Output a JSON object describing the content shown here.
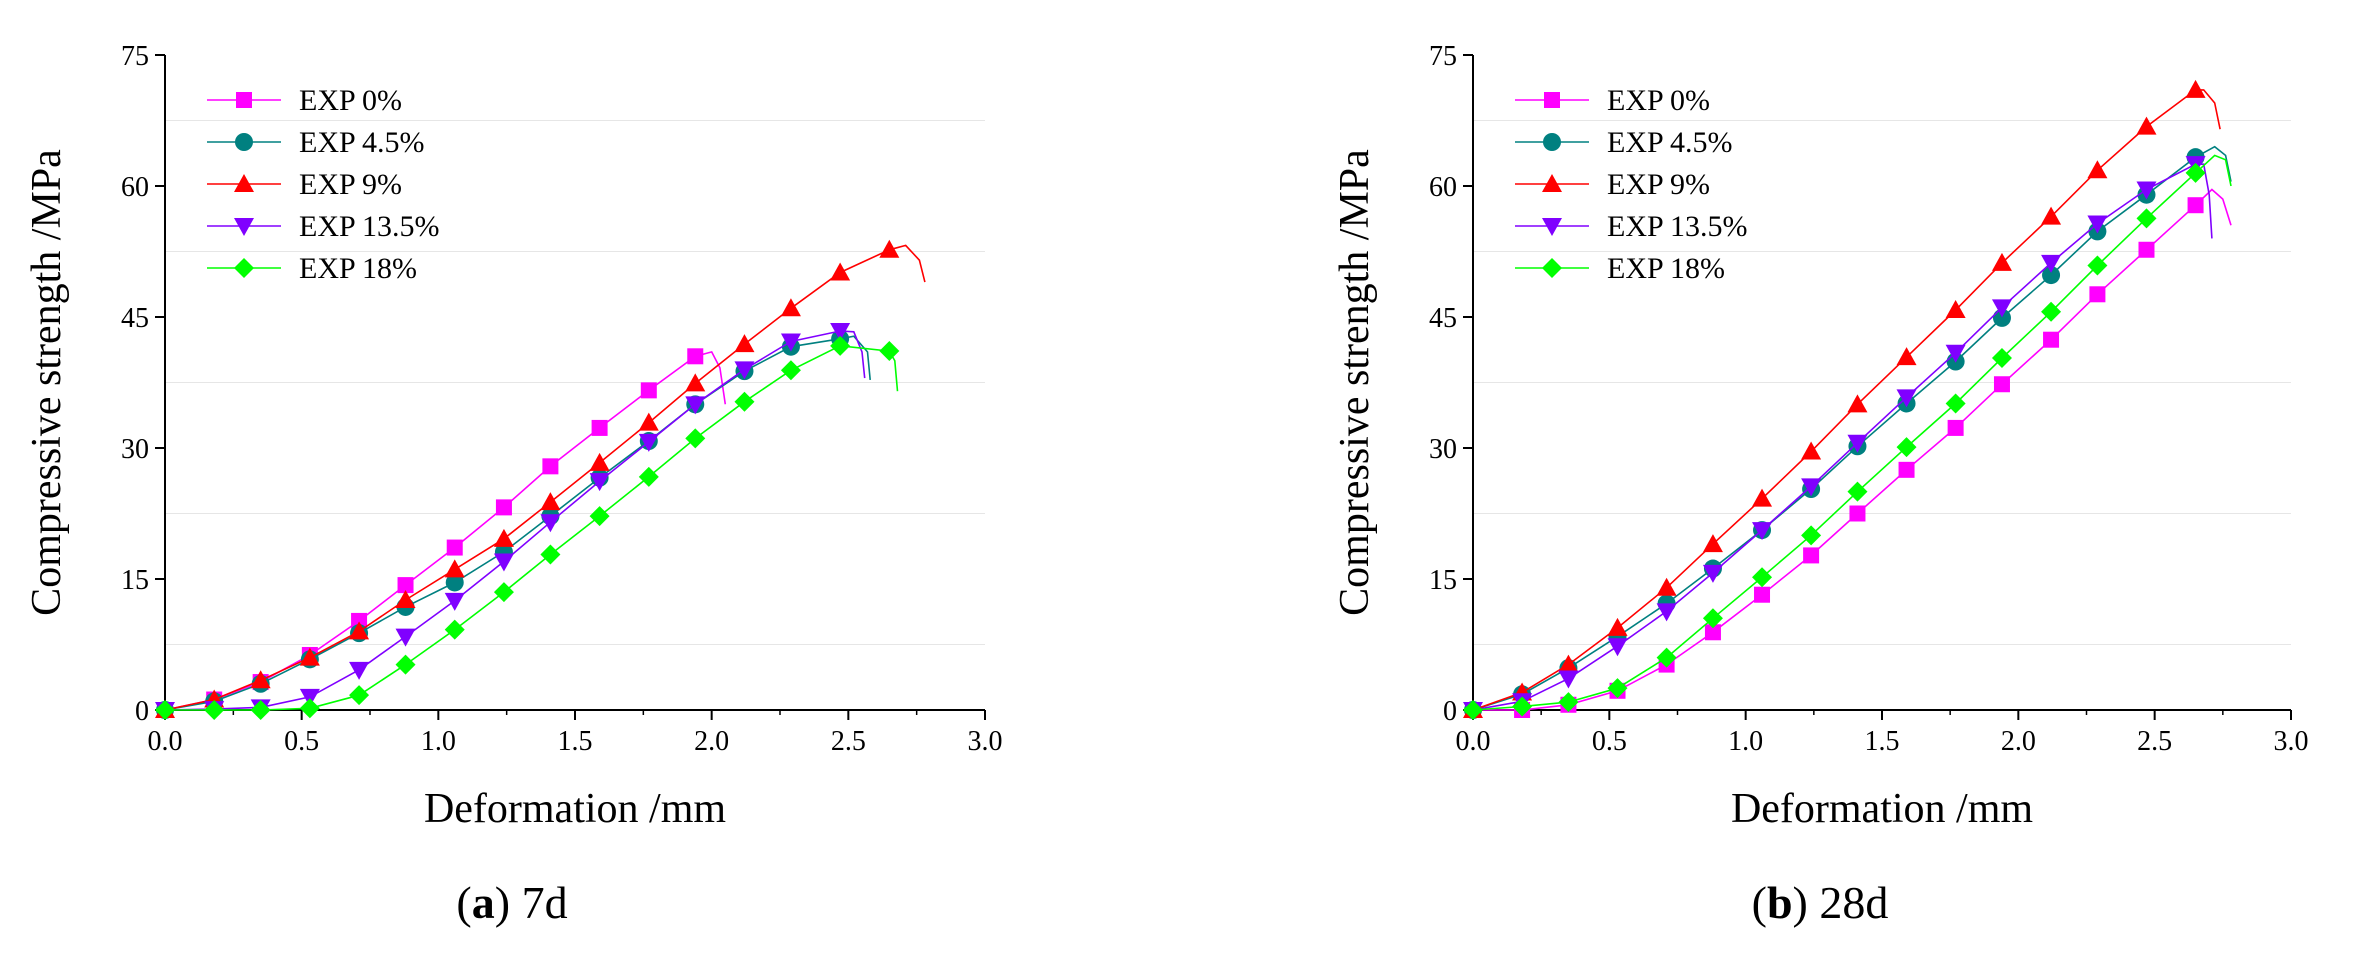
{
  "colors": {
    "EXP 0%": "#ff00ff",
    "EXP 4.5%": "#008080",
    "EXP 9%": "#ff0000",
    "EXP 13.5%": "#8000ff",
    "EXP 18%": "#00ff00"
  },
  "markers": {
    "EXP 0%": "square",
    "EXP 4.5%": "circle",
    "EXP 9%": "triangle-up",
    "EXP 13.5%": "triangle-down",
    "EXP 18%": "diamond"
  },
  "chart_data": [
    {
      "type": "line",
      "panel_label": "a",
      "caption": "7d",
      "xlabel": "Deformation /mm",
      "ylabel": "Compressive strength /MPa",
      "xlim": [
        0,
        3
      ],
      "ylim": [
        0,
        75
      ],
      "xticks": [
        0.0,
        0.5,
        1.0,
        1.5,
        2.0,
        2.5,
        3.0
      ],
      "xtick_labels": [
        "0.0",
        "0.5",
        "1.0",
        "1.5",
        "2.0",
        "2.5",
        "3.0"
      ],
      "yticks": [
        0,
        15,
        30,
        45,
        60,
        75
      ],
      "ytick_labels": [
        "0",
        "15",
        "30",
        "45",
        "60",
        "75"
      ],
      "legend": [
        "EXP 0%",
        "EXP 4.5%",
        "EXP 9%",
        "EXP 13.5%",
        "EXP 18%"
      ],
      "series": [
        {
          "name": "EXP 0%",
          "points": [
            [
              0,
              0
            ],
            [
              0.18,
              1.2
            ],
            [
              0.35,
              3.2
            ],
            [
              0.53,
              6.3
            ],
            [
              0.71,
              10.2
            ],
            [
              0.88,
              14.3
            ],
            [
              1.06,
              18.6
            ],
            [
              1.24,
              23.2
            ],
            [
              1.41,
              27.9
            ],
            [
              1.59,
              32.3
            ],
            [
              1.77,
              36.6
            ],
            [
              1.94,
              40.5
            ]
          ],
          "tail": [
            [
              2.0,
              41.0
            ],
            [
              2.03,
              39.2
            ],
            [
              2.05,
              35.0
            ]
          ]
        },
        {
          "name": "EXP 4.5%",
          "points": [
            [
              0,
              0
            ],
            [
              0.18,
              1.0
            ],
            [
              0.35,
              3.0
            ],
            [
              0.53,
              5.8
            ],
            [
              0.71,
              8.8
            ],
            [
              0.88,
              11.8
            ],
            [
              1.06,
              14.6
            ],
            [
              1.24,
              18.1
            ],
            [
              1.41,
              22.2
            ],
            [
              1.59,
              26.6
            ],
            [
              1.77,
              30.8
            ],
            [
              1.94,
              35.0
            ],
            [
              2.12,
              38.8
            ],
            [
              2.29,
              41.6
            ],
            [
              2.47,
              42.5
            ]
          ],
          "tail": [
            [
              2.52,
              42.8
            ],
            [
              2.57,
              41.0
            ],
            [
              2.58,
              37.8
            ]
          ]
        },
        {
          "name": "EXP 9%",
          "points": [
            [
              0,
              0
            ],
            [
              0.18,
              1.2
            ],
            [
              0.35,
              3.4
            ],
            [
              0.53,
              6.0
            ],
            [
              0.71,
              9.0
            ],
            [
              0.88,
              12.6
            ],
            [
              1.06,
              16.1
            ],
            [
              1.24,
              19.6
            ],
            [
              1.41,
              23.8
            ],
            [
              1.59,
              28.3
            ],
            [
              1.77,
              32.9
            ],
            [
              1.94,
              37.4
            ],
            [
              2.12,
              41.9
            ],
            [
              2.29,
              46.0
            ],
            [
              2.47,
              50.1
            ],
            [
              2.65,
              52.7
            ]
          ],
          "tail": [
            [
              2.71,
              53.2
            ],
            [
              2.76,
              51.5
            ],
            [
              2.78,
              49.0
            ]
          ]
        },
        {
          "name": "EXP 13.5%",
          "points": [
            [
              0,
              0
            ],
            [
              0.18,
              0.1
            ],
            [
              0.35,
              0.3
            ],
            [
              0.53,
              1.5
            ],
            [
              0.71,
              4.6
            ],
            [
              0.88,
              8.4
            ],
            [
              1.06,
              12.5
            ],
            [
              1.24,
              17.0
            ],
            [
              1.41,
              21.5
            ],
            [
              1.59,
              26.2
            ],
            [
              1.77,
              30.7
            ],
            [
              1.94,
              35.0
            ],
            [
              2.12,
              39.0
            ],
            [
              2.29,
              42.2
            ],
            [
              2.47,
              43.4
            ]
          ],
          "tail": [
            [
              2.52,
              43.3
            ],
            [
              2.55,
              41.0
            ],
            [
              2.56,
              38.0
            ]
          ]
        },
        {
          "name": "EXP 18%",
          "points": [
            [
              0,
              0
            ],
            [
              0.18,
              0
            ],
            [
              0.35,
              0
            ],
            [
              0.53,
              0.2
            ],
            [
              0.71,
              1.7
            ],
            [
              0.88,
              5.2
            ],
            [
              1.06,
              9.2
            ],
            [
              1.24,
              13.5
            ],
            [
              1.41,
              17.8
            ],
            [
              1.59,
              22.2
            ],
            [
              1.77,
              26.7
            ],
            [
              1.94,
              31.1
            ],
            [
              2.12,
              35.3
            ],
            [
              2.29,
              38.9
            ],
            [
              2.47,
              41.7
            ],
            [
              2.65,
              41.1
            ]
          ],
          "tail": [
            [
              2.67,
              40.0
            ],
            [
              2.68,
              36.5
            ]
          ]
        }
      ]
    },
    {
      "type": "line",
      "panel_label": "b",
      "caption": "28d",
      "xlabel": "Deformation /mm",
      "ylabel": "Compressive strength /MPa",
      "xlim": [
        0,
        3
      ],
      "ylim": [
        0,
        75
      ],
      "xticks": [
        0.0,
        0.5,
        1.0,
        1.5,
        2.0,
        2.5,
        3.0
      ],
      "xtick_labels": [
        "0.0",
        "0.5",
        "1.0",
        "1.5",
        "2.0",
        "2.5",
        "3.0"
      ],
      "yticks": [
        0,
        15,
        30,
        45,
        60,
        75
      ],
      "ytick_labels": [
        "0",
        "15",
        "30",
        "45",
        "60",
        "75"
      ],
      "legend": [
        "EXP 0%",
        "EXP 4.5%",
        "EXP 9%",
        "EXP 13.5%",
        "EXP 18%"
      ],
      "series": [
        {
          "name": "EXP 0%",
          "points": [
            [
              0,
              0
            ],
            [
              0.18,
              0
            ],
            [
              0.35,
              0.6
            ],
            [
              0.53,
              2.2
            ],
            [
              0.71,
              5.2
            ],
            [
              0.88,
              8.9
            ],
            [
              1.06,
              13.2
            ],
            [
              1.24,
              17.7
            ],
            [
              1.41,
              22.5
            ],
            [
              1.59,
              27.5
            ],
            [
              1.77,
              32.3
            ],
            [
              1.94,
              37.3
            ],
            [
              2.12,
              42.4
            ],
            [
              2.29,
              47.6
            ],
            [
              2.47,
              52.7
            ],
            [
              2.65,
              57.8
            ]
          ],
          "tail": [
            [
              2.71,
              59.6
            ],
            [
              2.75,
              58.5
            ],
            [
              2.78,
              55.5
            ]
          ]
        },
        {
          "name": "EXP 4.5%",
          "points": [
            [
              0,
              0
            ],
            [
              0.18,
              1.8
            ],
            [
              0.35,
              4.8
            ],
            [
              0.53,
              8.4
            ],
            [
              0.71,
              12.2
            ],
            [
              0.88,
              16.2
            ],
            [
              1.06,
              20.6
            ],
            [
              1.24,
              25.3
            ],
            [
              1.41,
              30.2
            ],
            [
              1.59,
              35.1
            ],
            [
              1.77,
              39.9
            ],
            [
              1.94,
              44.9
            ],
            [
              2.12,
              49.8
            ],
            [
              2.29,
              54.8
            ],
            [
              2.47,
              59.0
            ],
            [
              2.65,
              63.3
            ]
          ],
          "tail": [
            [
              2.72,
              64.5
            ],
            [
              2.76,
              63.5
            ],
            [
              2.78,
              60.5
            ]
          ]
        },
        {
          "name": "EXP 9%",
          "points": [
            [
              0,
              0
            ],
            [
              0.18,
              2.0
            ],
            [
              0.35,
              5.2
            ],
            [
              0.53,
              9.4
            ],
            [
              0.71,
              14.0
            ],
            [
              0.88,
              19.0
            ],
            [
              1.06,
              24.2
            ],
            [
              1.24,
              29.6
            ],
            [
              1.41,
              35.0
            ],
            [
              1.59,
              40.4
            ],
            [
              1.77,
              45.8
            ],
            [
              1.94,
              51.2
            ],
            [
              2.12,
              56.5
            ],
            [
              2.29,
              61.8
            ],
            [
              2.47,
              66.8
            ],
            [
              2.65,
              71.0
            ]
          ],
          "tail": [
            [
              2.68,
              71.0
            ],
            [
              2.72,
              69.5
            ],
            [
              2.74,
              66.5
            ]
          ]
        },
        {
          "name": "EXP 13.5%",
          "points": [
            [
              0,
              0
            ],
            [
              0.18,
              1.0
            ],
            [
              0.35,
              3.6
            ],
            [
              0.53,
              7.3
            ],
            [
              0.71,
              11.3
            ],
            [
              0.88,
              15.7
            ],
            [
              1.06,
              20.6
            ],
            [
              1.24,
              25.6
            ],
            [
              1.41,
              30.6
            ],
            [
              1.59,
              35.8
            ],
            [
              1.77,
              40.9
            ],
            [
              1.94,
              46.1
            ],
            [
              2.12,
              51.2
            ],
            [
              2.29,
              55.7
            ],
            [
              2.47,
              59.6
            ],
            [
              2.65,
              62.5
            ]
          ],
          "tail": [
            [
              2.68,
              62.5
            ],
            [
              2.7,
              59.0
            ],
            [
              2.71,
              54.0
            ]
          ]
        },
        {
          "name": "EXP 18%",
          "points": [
            [
              0,
              0
            ],
            [
              0.18,
              0.4
            ],
            [
              0.35,
              0.9
            ],
            [
              0.53,
              2.5
            ],
            [
              0.71,
              6.0
            ],
            [
              0.88,
              10.5
            ],
            [
              1.06,
              15.2
            ],
            [
              1.24,
              20.0
            ],
            [
              1.41,
              25.0
            ],
            [
              1.59,
              30.1
            ],
            [
              1.77,
              35.1
            ],
            [
              1.94,
              40.3
            ],
            [
              2.12,
              45.6
            ],
            [
              2.29,
              50.9
            ],
            [
              2.47,
              56.3
            ],
            [
              2.65,
              61.5
            ]
          ],
          "tail": [
            [
              2.72,
              63.5
            ],
            [
              2.76,
              63.0
            ],
            [
              2.78,
              60.0
            ]
          ]
        }
      ]
    }
  ]
}
